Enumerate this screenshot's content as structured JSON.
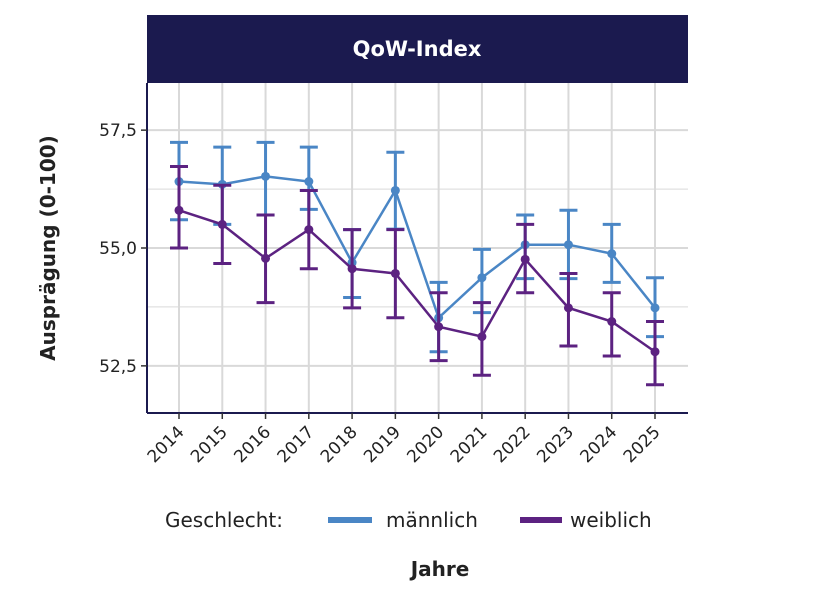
{
  "chart_data": {
    "type": "line",
    "title": "QoW-Index",
    "xlabel": "Jahre",
    "ylabel": "Ausprägung (0-100)",
    "x": [
      "2014",
      "2015",
      "2016",
      "2017",
      "2018",
      "2019",
      "2020",
      "2021",
      "2022",
      "2023",
      "2024",
      "2025"
    ],
    "yticks": [
      52.5,
      55.0,
      57.5
    ],
    "ytick_labels": [
      "52,5",
      "55,0",
      "57,5"
    ],
    "ylim": [
      51.5,
      58.5
    ],
    "grid": true,
    "legend_title": "Geschlecht:",
    "legend_position": "bottom",
    "series": [
      {
        "name": "männlich",
        "color": "#4a86c5",
        "values": [
          56.41,
          56.35,
          56.52,
          56.41,
          54.69,
          56.22,
          53.52,
          54.37,
          55.07,
          55.07,
          54.88,
          53.73
        ],
        "upper": [
          57.24,
          57.14,
          57.24,
          57.14,
          55.39,
          57.03,
          54.27,
          54.97,
          55.7,
          55.8,
          55.5,
          54.37
        ],
        "lower": [
          55.6,
          55.5,
          55.7,
          55.82,
          53.95,
          55.4,
          52.8,
          53.63,
          54.35,
          54.35,
          54.27,
          53.12
        ]
      },
      {
        "name": "weiblich",
        "color": "#5c2281",
        "values": [
          55.8,
          55.5,
          54.78,
          55.39,
          54.56,
          54.46,
          53.33,
          53.12,
          54.76,
          53.73,
          53.44,
          52.8
        ],
        "upper": [
          56.73,
          56.33,
          55.7,
          56.22,
          55.39,
          55.39,
          54.05,
          53.84,
          55.5,
          54.46,
          54.05,
          53.44
        ],
        "lower": [
          55.0,
          54.67,
          53.84,
          54.56,
          53.73,
          53.52,
          52.61,
          52.3,
          54.05,
          52.92,
          52.71,
          52.1
        ]
      }
    ]
  },
  "colors": {
    "header_bg": "#1b1a4f",
    "header_text": "#ffffff",
    "grid": "#d9d9d9"
  }
}
